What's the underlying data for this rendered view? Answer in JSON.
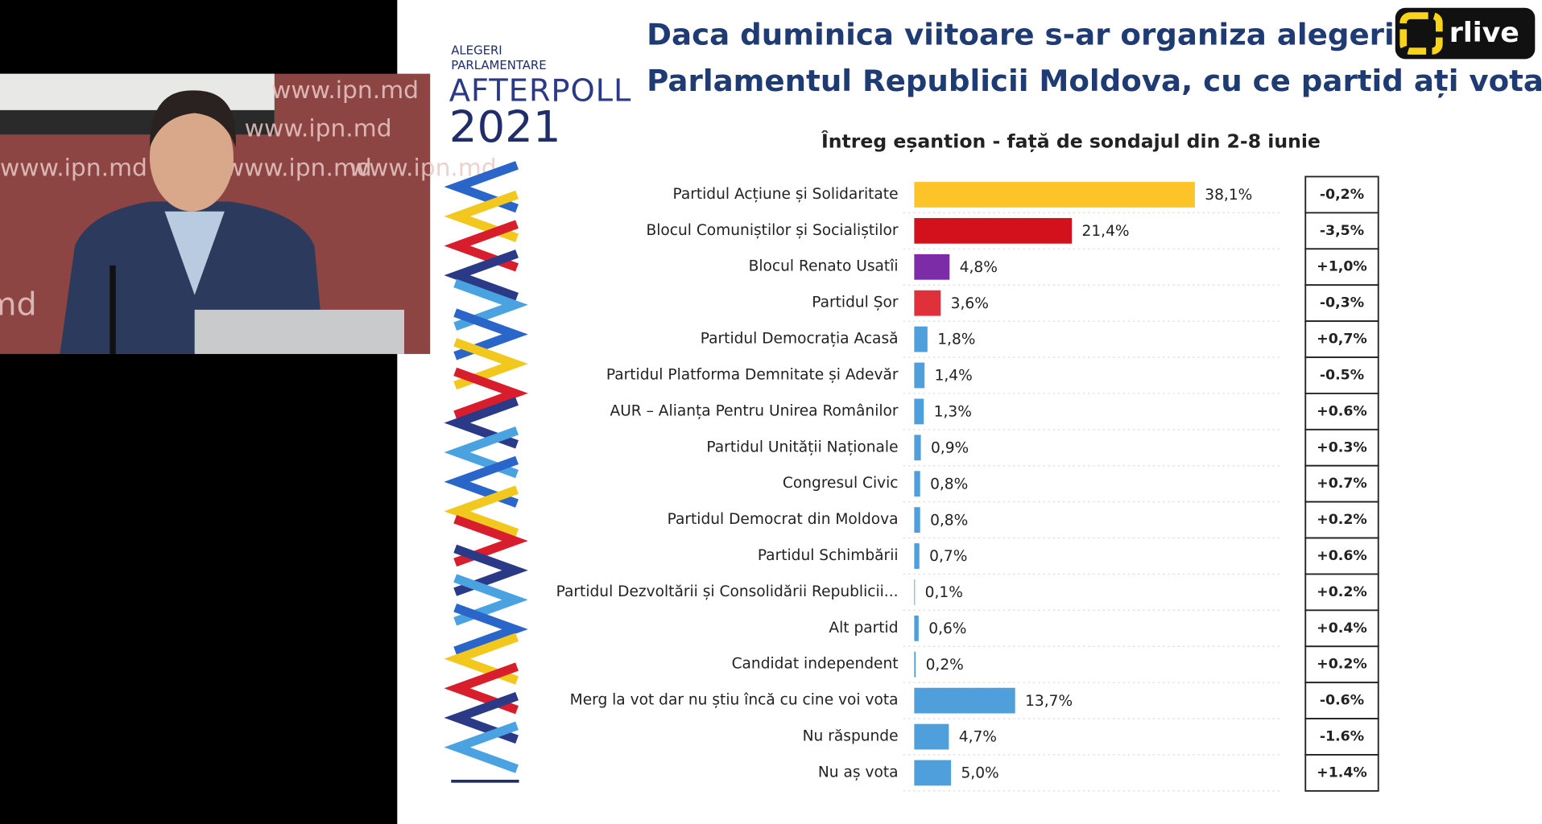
{
  "stream": {
    "watermark": "www.ipn.md",
    "channel": "rlive"
  },
  "logo": {
    "line1": "ALEGERI",
    "line2": "PARLAMENTARE",
    "brand": "AFTERPOLL",
    "year": "2021"
  },
  "chart_data": {
    "type": "hbar",
    "title": "Daca duminica viitoare s-ar organiza alegeri pentru",
    "title_line2": "Parlamentul Republicii Moldova, cu ce partid ați vota?",
    "subtitle": "Întreg eșantion - față de sondajul din 2-8 iunie",
    "categories": [
      "Partidul Acțiune și Solidaritate",
      "Blocul Comuniștilor și Socialiștilor",
      "Blocul Renato Usatîi",
      "Partidul Șor",
      "Partidul Democrația Acasă",
      "Partidul Platforma Demnitate și Adevăr",
      "AUR – Alianța Pentru Unirea Românilor",
      "Partidul Unității Naționale",
      "Congresul Civic",
      "Partidul Democrat din Moldova",
      "Partidul Schimbării",
      "Partidul Dezvoltării și Consolidării Republicii...",
      "Alt partid",
      "Candidat independent",
      "Merg la vot dar nu știu încă cu cine voi vota",
      "Nu răspunde",
      "Nu aș vota"
    ],
    "values": [
      38.1,
      21.4,
      4.8,
      3.6,
      1.8,
      1.4,
      1.3,
      0.9,
      0.8,
      0.8,
      0.7,
      0.1,
      0.6,
      0.2,
      13.7,
      4.7,
      5.0
    ],
    "value_labels": [
      "38,1%",
      "21,4%",
      "4,8%",
      "3,6%",
      "1,8%",
      "1,4%",
      "1,3%",
      "0,9%",
      "0,8%",
      "0,8%",
      "0,7%",
      "0,1%",
      "0,6%",
      "0,2%",
      "13,7%",
      "4,7%",
      "5,0%"
    ],
    "colors": [
      "#fdc42a",
      "#d2111d",
      "#7b2ca6",
      "#e0303a",
      "#4f9fdc",
      "#4f9fdc",
      "#4f9fdc",
      "#4f9fdc",
      "#4f9fdc",
      "#4f9fdc",
      "#4f9fdc",
      "#4f9fdc",
      "#4f9fdc",
      "#4f9fdc",
      "#4f9fdc",
      "#4f9fdc",
      "#4f9fdc"
    ],
    "changes": [
      "-0,2%",
      "-3,5%",
      "+1,0%",
      "-0,3%",
      "+0,7%",
      "-0.5%",
      "+0.6%",
      "+0.3%",
      "+0.7%",
      "+0.2%",
      "+0.6%",
      "+0.2%",
      "+0.4%",
      "+0.2%",
      "-0.6%",
      "-1.6%",
      "+1.4%"
    ],
    "xlim": [
      0,
      50
    ]
  }
}
